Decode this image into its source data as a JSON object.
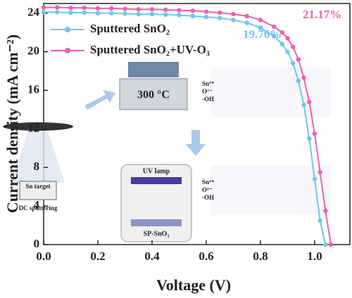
{
  "chart_data": {
    "type": "line",
    "x_label": "Voltage (V)",
    "y_label": "Current density (mA cm⁻²)",
    "x": [
      0,
      0.05,
      0.1,
      0.15,
      0.2,
      0.25,
      0.3,
      0.35,
      0.4,
      0.45,
      0.5,
      0.55,
      0.6,
      0.65,
      0.7,
      0.75,
      0.8,
      0.85,
      0.88,
      0.9,
      0.92,
      0.94,
      0.96,
      0.98,
      1.0,
      1.02,
      1.04,
      1.06
    ],
    "series": [
      {
        "name": "Sputtered SnO₂",
        "color": "#6ec6ef",
        "values": [
          24.1,
          24.1,
          24.05,
          24.05,
          24.0,
          24.0,
          23.95,
          23.9,
          23.9,
          23.85,
          23.8,
          23.7,
          23.6,
          23.5,
          23.3,
          23.0,
          22.5,
          21.6,
          20.8,
          20.0,
          18.8,
          17.0,
          14.5,
          11.0,
          6.8,
          2.5,
          0,
          null
        ]
      },
      {
        "name": "Sputtered SnO₂+UV-O₃",
        "color": "#ee5fae",
        "values": [
          24.6,
          24.6,
          24.55,
          24.55,
          24.5,
          24.5,
          24.45,
          24.4,
          24.4,
          24.35,
          24.3,
          24.25,
          24.15,
          24.05,
          23.9,
          23.7,
          23.3,
          22.6,
          22.0,
          21.4,
          20.5,
          19.2,
          17.3,
          14.8,
          11.5,
          7.5,
          3.5,
          0
        ]
      }
    ],
    "annotations": [
      "19.76%",
      "21.17%"
    ],
    "xlim": [
      0,
      1.13
    ],
    "ylim": [
      0,
      25
    ],
    "xticks": [
      {
        "value": 0,
        "label": "0.0"
      },
      {
        "value": 0.2,
        "label": "0.2"
      },
      {
        "value": 0.4,
        "label": "0.4"
      },
      {
        "value": 0.6,
        "label": "0.6"
      },
      {
        "value": 0.8,
        "label": "0.8"
      },
      {
        "value": 1.0,
        "label": "1.0"
      }
    ],
    "yticks": [
      0,
      4,
      8,
      12,
      16,
      20,
      24
    ],
    "legend": "upper-left",
    "inset": {
      "heater": "300 °C",
      "target": "Sn target",
      "sputter": "DC sputtering",
      "lamp": "UV lamp",
      "film": "SP-SnO₂",
      "ions": [
        "Sn⁴⁺",
        "O²⁻",
        "-OH"
      ]
    }
  }
}
